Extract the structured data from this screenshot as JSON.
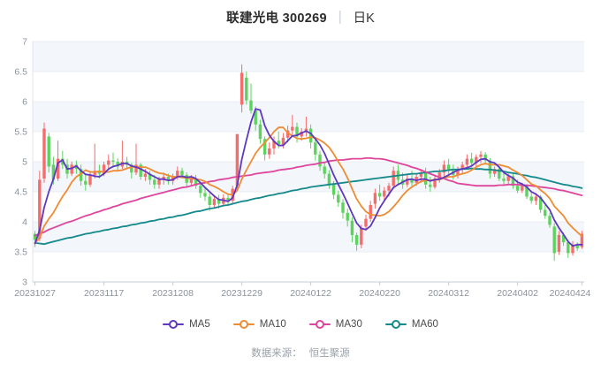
{
  "header": {
    "title": "联建光电 300269",
    "separator": "|",
    "subtitle": "日K"
  },
  "footer": {
    "source_label": "数据来源：",
    "source_value": "恒生聚源"
  },
  "chart_data": {
    "type": "candlestick",
    "title": "联建光电 300269 日K",
    "ylim": [
      3,
      7
    ],
    "y_ticks": [
      "7",
      "6.5",
      "6",
      "5.5",
      "5",
      "4.5",
      "4",
      "3.5",
      "3"
    ],
    "x_tick_indices": [
      0,
      15,
      30,
      45,
      60,
      75,
      90,
      105,
      119
    ],
    "x_tick_labels": [
      "20231027",
      "20231117",
      "20231208",
      "20231229",
      "20240122",
      "20240220",
      "20240312",
      "20240402",
      "20240424"
    ],
    "grid": true,
    "legend_position": "bottom",
    "up_color": "#f56c6c",
    "down_color": "#5dd25f",
    "band_color": "#f3f6fa",
    "grid_color": "#e9edf4",
    "axis_color": "#c6ccd5",
    "label_color": "#8b929c",
    "dates": [
      "20231027",
      "20231030",
      "20231031",
      "20231101",
      "20231102",
      "20231103",
      "20231106",
      "20231107",
      "20231108",
      "20231109",
      "20231110",
      "20231113",
      "20231114",
      "20231115",
      "20231116",
      "20231117",
      "20231120",
      "20231121",
      "20231122",
      "20231123",
      "20231124",
      "20231127",
      "20231128",
      "20231129",
      "20231130",
      "20231201",
      "20231204",
      "20231205",
      "20231206",
      "20231207",
      "20231208",
      "20231211",
      "20231212",
      "20231213",
      "20231214",
      "20231215",
      "20231218",
      "20231219",
      "20231220",
      "20231221",
      "20231222",
      "20231225",
      "20231226",
      "20231227",
      "20231228",
      "20231229",
      "20240102",
      "20240103",
      "20240104",
      "20240105",
      "20240108",
      "20240109",
      "20240110",
      "20240111",
      "20240112",
      "20240115",
      "20240116",
      "20240117",
      "20240118",
      "20240119",
      "20240122",
      "20240123",
      "20240124",
      "20240125",
      "20240126",
      "20240129",
      "20240130",
      "20240131",
      "20240201",
      "20240202",
      "20240205",
      "20240206",
      "20240207",
      "20240208",
      "20240219",
      "20240220",
      "20240221",
      "20240222",
      "20240223",
      "20240226",
      "20240227",
      "20240228",
      "20240229",
      "20240301",
      "20240304",
      "20240305",
      "20240306",
      "20240307",
      "20240308",
      "20240311",
      "20240312",
      "20240313",
      "20240314",
      "20240315",
      "20240318",
      "20240319",
      "20240320",
      "20240321",
      "20240322",
      "20240325",
      "20240326",
      "20240327",
      "20240328",
      "20240329",
      "20240401",
      "20240402",
      "20240403",
      "20240408",
      "20240409",
      "20240410",
      "20240411",
      "20240412",
      "20240415",
      "20240416",
      "20240417",
      "20240418",
      "20240419",
      "20240422",
      "20240423",
      "20240424"
    ],
    "ohlc": [
      [
        3.8,
        3.85,
        3.58,
        3.7
      ],
      [
        3.72,
        4.85,
        3.68,
        4.7
      ],
      [
        4.72,
        5.65,
        4.65,
        5.55
      ],
      [
        5.42,
        5.48,
        4.82,
        4.92
      ],
      [
        4.95,
        5.08,
        4.62,
        4.7
      ],
      [
        4.72,
        5.35,
        4.68,
        5.05
      ],
      [
        5.05,
        5.18,
        4.88,
        4.95
      ],
      [
        4.95,
        5.05,
        4.72,
        4.8
      ],
      [
        4.8,
        5.0,
        4.76,
        4.95
      ],
      [
        4.95,
        5.02,
        4.8,
        4.88
      ],
      [
        4.88,
        4.95,
        4.6,
        4.68
      ],
      [
        4.68,
        4.8,
        4.52,
        4.62
      ],
      [
        4.62,
        4.85,
        4.58,
        4.78
      ],
      [
        4.78,
        5.3,
        4.72,
        4.85
      ],
      [
        4.85,
        4.95,
        4.72,
        4.8
      ],
      [
        4.8,
        5.0,
        4.76,
        4.95
      ],
      [
        4.95,
        5.12,
        4.88,
        5.02
      ],
      [
        5.02,
        5.15,
        4.9,
        5.0
      ],
      [
        5.0,
        5.06,
        4.84,
        4.92
      ],
      [
        4.92,
        5.35,
        4.88,
        5.0
      ],
      [
        5.0,
        5.08,
        4.88,
        4.95
      ],
      [
        4.95,
        4.98,
        4.72,
        4.82
      ],
      [
        4.82,
        5.3,
        4.78,
        4.95
      ],
      [
        4.95,
        4.98,
        4.7,
        4.75
      ],
      [
        4.75,
        4.88,
        4.68,
        4.8
      ],
      [
        4.8,
        4.85,
        4.62,
        4.7
      ],
      [
        4.7,
        4.78,
        4.55,
        4.62
      ],
      [
        4.62,
        4.75,
        4.55,
        4.7
      ],
      [
        4.7,
        4.82,
        4.62,
        4.75
      ],
      [
        4.75,
        4.8,
        4.62,
        4.68
      ],
      [
        4.68,
        4.8,
        4.62,
        4.75
      ],
      [
        4.75,
        4.92,
        4.7,
        4.85
      ],
      [
        4.85,
        4.9,
        4.72,
        4.78
      ],
      [
        4.78,
        4.82,
        4.58,
        4.65
      ],
      [
        4.65,
        4.78,
        4.6,
        4.72
      ],
      [
        4.72,
        4.78,
        4.55,
        4.6
      ],
      [
        4.6,
        4.64,
        4.4,
        4.48
      ],
      [
        4.48,
        4.56,
        4.35,
        4.42
      ],
      [
        4.42,
        4.48,
        4.18,
        4.28
      ],
      [
        4.28,
        4.44,
        4.22,
        4.38
      ],
      [
        4.38,
        4.45,
        4.22,
        4.3
      ],
      [
        4.3,
        4.46,
        4.26,
        4.4
      ],
      [
        4.4,
        4.46,
        4.28,
        4.35
      ],
      [
        4.35,
        4.6,
        4.3,
        4.55
      ],
      [
        4.6,
        5.46,
        4.52,
        5.46
      ],
      [
        5.95,
        6.62,
        5.82,
        6.48
      ],
      [
        6.4,
        6.5,
        5.95,
        6.02
      ],
      [
        6.02,
        6.3,
        5.8,
        5.85
      ],
      [
        5.85,
        5.92,
        5.52,
        5.62
      ],
      [
        5.62,
        5.7,
        5.3,
        5.38
      ],
      [
        5.38,
        5.42,
        5.02,
        5.12
      ],
      [
        5.12,
        5.32,
        5.05,
        5.22
      ],
      [
        5.22,
        5.42,
        5.12,
        5.35
      ],
      [
        5.35,
        5.5,
        5.22,
        5.28
      ],
      [
        5.28,
        5.48,
        5.22,
        5.4
      ],
      [
        5.4,
        5.6,
        5.32,
        5.52
      ],
      [
        5.52,
        5.78,
        5.45,
        5.58
      ],
      [
        5.58,
        5.65,
        5.32,
        5.42
      ],
      [
        5.42,
        5.56,
        5.35,
        5.5
      ],
      [
        5.5,
        5.75,
        5.42,
        5.55
      ],
      [
        5.55,
        5.62,
        5.22,
        5.32
      ],
      [
        5.32,
        5.4,
        5.02,
        5.12
      ],
      [
        5.12,
        5.18,
        4.85,
        4.92
      ],
      [
        4.92,
        5.0,
        4.72,
        4.8
      ],
      [
        4.8,
        4.86,
        4.55,
        4.62
      ],
      [
        4.62,
        4.68,
        4.38,
        4.45
      ],
      [
        4.45,
        4.52,
        4.25,
        4.32
      ],
      [
        4.32,
        4.38,
        4.05,
        4.15
      ],
      [
        4.15,
        4.22,
        3.92,
        4.02
      ],
      [
        4.02,
        4.08,
        3.66,
        3.78
      ],
      [
        3.78,
        3.82,
        3.52,
        3.62
      ],
      [
        3.62,
        3.95,
        3.56,
        3.9
      ],
      [
        3.92,
        4.12,
        3.85,
        4.05
      ],
      [
        4.05,
        4.35,
        4.0,
        4.28
      ],
      [
        4.3,
        4.55,
        4.22,
        4.48
      ],
      [
        4.48,
        4.62,
        4.35,
        4.42
      ],
      [
        4.42,
        4.58,
        4.35,
        4.52
      ],
      [
        4.52,
        4.65,
        4.42,
        4.6
      ],
      [
        4.6,
        4.92,
        4.55,
        4.85
      ],
      [
        4.85,
        4.95,
        4.62,
        4.7
      ],
      [
        4.7,
        4.82,
        4.55,
        4.62
      ],
      [
        4.62,
        4.78,
        4.58,
        4.72
      ],
      [
        4.72,
        4.85,
        4.6,
        4.65
      ],
      [
        4.65,
        4.8,
        4.6,
        4.75
      ],
      [
        4.75,
        4.88,
        4.65,
        4.82
      ],
      [
        4.82,
        4.9,
        4.55,
        4.62
      ],
      [
        4.62,
        4.75,
        4.5,
        4.58
      ],
      [
        4.58,
        4.78,
        4.55,
        4.72
      ],
      [
        4.72,
        4.88,
        4.65,
        4.82
      ],
      [
        4.82,
        5.02,
        4.75,
        4.95
      ],
      [
        4.95,
        5.05,
        4.78,
        4.85
      ],
      [
        4.85,
        4.95,
        4.7,
        4.78
      ],
      [
        4.78,
        4.92,
        4.72,
        4.88
      ],
      [
        4.88,
        5.0,
        4.8,
        4.95
      ],
      [
        4.95,
        5.12,
        4.88,
        5.05
      ],
      [
        5.05,
        5.15,
        4.92,
        4.98
      ],
      [
        4.98,
        5.12,
        4.9,
        5.08
      ],
      [
        5.08,
        5.18,
        4.98,
        5.12
      ],
      [
        5.12,
        5.16,
        4.95,
        5.02
      ],
      [
        5.02,
        5.06,
        4.72,
        4.8
      ],
      [
        4.8,
        4.92,
        4.75,
        4.88
      ],
      [
        4.88,
        4.9,
        4.68,
        4.72
      ],
      [
        4.72,
        4.82,
        4.62,
        4.68
      ],
      [
        4.68,
        4.8,
        4.62,
        4.76
      ],
      [
        4.76,
        4.8,
        4.55,
        4.6
      ],
      [
        4.6,
        4.7,
        4.48,
        4.52
      ],
      [
        4.52,
        4.65,
        4.48,
        4.6
      ],
      [
        4.6,
        4.62,
        4.38,
        4.42
      ],
      [
        4.42,
        4.52,
        4.3,
        4.35
      ],
      [
        4.35,
        4.48,
        4.28,
        4.42
      ],
      [
        4.42,
        4.45,
        4.15,
        4.2
      ],
      [
        4.2,
        4.28,
        4.05,
        4.1
      ],
      [
        4.1,
        4.15,
        3.9,
        3.95
      ],
      [
        3.92,
        3.98,
        3.35,
        3.48
      ],
      [
        3.5,
        3.85,
        3.45,
        3.78
      ],
      [
        3.78,
        3.82,
        3.6,
        3.66
      ],
      [
        3.66,
        3.7,
        3.4,
        3.48
      ],
      [
        3.48,
        3.68,
        3.44,
        3.62
      ],
      [
        3.62,
        3.66,
        3.52,
        3.56
      ],
      [
        3.58,
        3.85,
        3.55,
        3.8
      ]
    ],
    "ma_series": [
      {
        "name": "MA5",
        "color": "#5e38c0",
        "values": [
          3.64,
          3.86,
          4.24,
          4.5,
          4.71,
          4.98,
          5.03,
          4.88,
          4.89,
          4.93,
          4.85,
          4.79,
          4.78,
          4.76,
          4.75,
          4.8,
          4.88,
          4.92,
          4.94,
          4.97,
          4.97,
          4.93,
          4.91,
          4.88,
          4.84,
          4.79,
          4.75,
          4.71,
          4.71,
          4.69,
          4.7,
          4.75,
          4.76,
          4.74,
          4.75,
          4.72,
          4.65,
          4.57,
          4.5,
          4.43,
          4.37,
          4.36,
          4.34,
          4.4,
          4.61,
          5.04,
          5.36,
          5.66,
          5.88,
          5.86,
          5.6,
          5.44,
          5.34,
          5.27,
          5.27,
          5.35,
          5.43,
          5.44,
          5.48,
          5.51,
          5.47,
          5.38,
          5.28,
          5.14,
          4.96,
          4.78,
          4.62,
          4.47,
          4.31,
          4.14,
          3.98,
          3.89,
          3.87,
          3.93,
          4.07,
          4.23,
          4.35,
          4.46,
          4.57,
          4.62,
          4.66,
          4.7,
          4.71,
          4.69,
          4.71,
          4.71,
          4.68,
          4.7,
          4.71,
          4.74,
          4.78,
          4.82,
          4.86,
          4.88,
          4.9,
          4.93,
          4.99,
          5.04,
          5.05,
          5.0,
          4.98,
          4.91,
          4.82,
          4.77,
          4.73,
          4.66,
          4.63,
          4.58,
          4.5,
          4.46,
          4.4,
          4.3,
          4.2,
          4.03,
          3.9,
          3.79,
          3.67,
          3.6,
          3.62,
          3.62
        ]
      },
      {
        "name": "MA10",
        "color": "#ef8b33",
        "values": [
          3.64,
          3.74,
          3.93,
          4.05,
          4.15,
          4.29,
          4.42,
          4.53,
          4.66,
          4.75,
          4.8,
          4.86,
          4.83,
          4.83,
          4.84,
          4.83,
          4.83,
          4.85,
          4.85,
          4.86,
          4.89,
          4.91,
          4.92,
          4.91,
          4.91,
          4.88,
          4.84,
          4.81,
          4.8,
          4.77,
          4.75,
          4.75,
          4.74,
          4.73,
          4.72,
          4.71,
          4.7,
          4.67,
          4.62,
          4.59,
          4.55,
          4.5,
          4.46,
          4.45,
          4.52,
          4.71,
          4.86,
          5.0,
          5.14,
          5.24,
          5.32,
          5.4,
          5.5,
          5.57,
          5.57,
          5.48,
          5.43,
          5.39,
          5.38,
          5.39,
          5.41,
          5.4,
          5.36,
          5.31,
          5.24,
          5.13,
          5.0,
          4.88,
          4.73,
          4.55,
          4.38,
          4.26,
          4.17,
          4.12,
          4.11,
          4.1,
          4.12,
          4.17,
          4.25,
          4.34,
          4.44,
          4.52,
          4.58,
          4.63,
          4.67,
          4.69,
          4.69,
          4.7,
          4.7,
          4.73,
          4.75,
          4.75,
          4.78,
          4.8,
          4.82,
          4.86,
          4.91,
          4.95,
          4.97,
          4.95,
          4.95,
          4.95,
          4.93,
          4.91,
          4.86,
          4.82,
          4.77,
          4.7,
          4.63,
          4.6,
          4.53,
          4.47,
          4.39,
          4.26,
          4.18,
          4.1,
          3.98,
          3.9,
          3.83,
          3.76
        ]
      },
      {
        "name": "MA30",
        "color": "#e0459e",
        "values": [
          3.77,
          3.8,
          3.83,
          3.87,
          3.9,
          3.93,
          3.96,
          3.99,
          4.01,
          4.04,
          4.07,
          4.1,
          4.12,
          4.15,
          4.17,
          4.2,
          4.22,
          4.25,
          4.27,
          4.3,
          4.32,
          4.34,
          4.36,
          4.39,
          4.41,
          4.43,
          4.45,
          4.47,
          4.49,
          4.51,
          4.53,
          4.55,
          4.57,
          4.58,
          4.6,
          4.62,
          4.64,
          4.65,
          4.67,
          4.68,
          4.7,
          4.71,
          4.72,
          4.74,
          4.75,
          4.76,
          4.77,
          4.78,
          4.8,
          4.81,
          4.82,
          4.83,
          4.84,
          4.86,
          4.87,
          4.88,
          4.89,
          4.91,
          4.92,
          4.94,
          4.95,
          4.96,
          4.98,
          4.99,
          5.01,
          5.02,
          5.03,
          5.03,
          5.04,
          5.05,
          5.05,
          5.05,
          5.06,
          5.06,
          5.05,
          5.05,
          5.04,
          5.02,
          5.0,
          4.98,
          4.96,
          4.94,
          4.91,
          4.89,
          4.86,
          4.83,
          4.8,
          4.77,
          4.74,
          4.72,
          4.69,
          4.67,
          4.64,
          4.63,
          4.62,
          4.61,
          4.6,
          4.6,
          4.6,
          4.6,
          4.6,
          4.61,
          4.61,
          4.62,
          4.62,
          4.62,
          4.61,
          4.61,
          4.6,
          4.59,
          4.58,
          4.57,
          4.56,
          4.55,
          4.53,
          4.52,
          4.5,
          4.48,
          4.46,
          4.44
        ]
      },
      {
        "name": "MA60",
        "color": "#14898c",
        "values": [
          3.65,
          3.64,
          3.63,
          3.65,
          3.67,
          3.69,
          3.71,
          3.73,
          3.74,
          3.76,
          3.78,
          3.8,
          3.81,
          3.83,
          3.84,
          3.86,
          3.87,
          3.89,
          3.9,
          3.92,
          3.93,
          3.95,
          3.96,
          3.98,
          3.99,
          4.01,
          4.02,
          4.04,
          4.05,
          4.07,
          4.08,
          4.1,
          4.11,
          4.13,
          4.15,
          4.17,
          4.18,
          4.2,
          4.22,
          4.23,
          4.25,
          4.27,
          4.28,
          4.3,
          4.32,
          4.34,
          4.35,
          4.37,
          4.39,
          4.4,
          4.42,
          4.44,
          4.45,
          4.47,
          4.48,
          4.5,
          4.52,
          4.53,
          4.55,
          4.56,
          4.58,
          4.59,
          4.6,
          4.61,
          4.62,
          4.63,
          4.64,
          4.65,
          4.66,
          4.67,
          4.68,
          4.69,
          4.7,
          4.71,
          4.72,
          4.73,
          4.74,
          4.75,
          4.76,
          4.77,
          4.78,
          4.79,
          4.8,
          4.8,
          4.81,
          4.82,
          4.83,
          4.84,
          4.84,
          4.85,
          4.86,
          4.87,
          4.87,
          4.88,
          4.88,
          4.89,
          4.88,
          4.88,
          4.87,
          4.87,
          4.86,
          4.85,
          4.84,
          4.82,
          4.81,
          4.8,
          4.78,
          4.77,
          4.75,
          4.74,
          4.72,
          4.7,
          4.68,
          4.66,
          4.64,
          4.62,
          4.61,
          4.59,
          4.58,
          4.56
        ]
      }
    ]
  }
}
